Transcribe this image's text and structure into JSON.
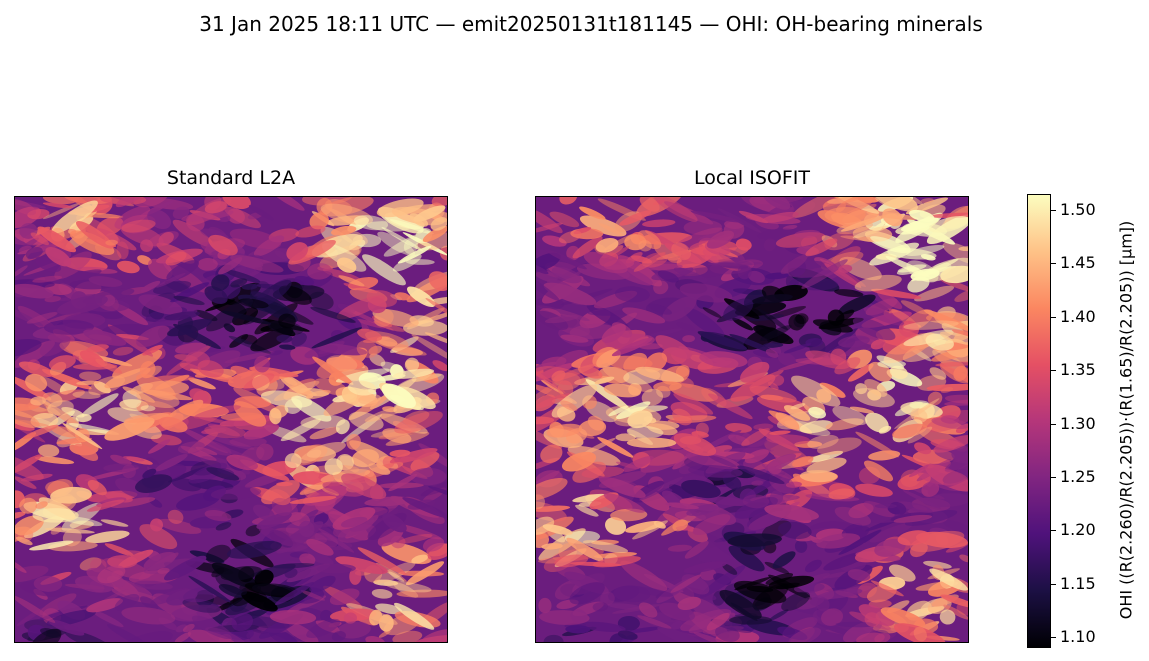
{
  "figure": {
    "title": "31 Jan 2025 18:11 UTC — emit20250131t181145 — OHI: OH-bearing minerals"
  },
  "panels": [
    {
      "title": "Standard L2A"
    },
    {
      "title": "Local ISOFIT"
    }
  ],
  "colorbar": {
    "label": "OHI  ((R(2.260)/R(2.205))·(R(1.65)/R(2.205))  [µm])",
    "colormap": "magma",
    "range": [
      1.09,
      1.515
    ],
    "ticks": [
      "1.10",
      "1.15",
      "1.20",
      "1.25",
      "1.30",
      "1.35",
      "1.40",
      "1.45",
      "1.50"
    ],
    "colors": [
      "#000004",
      "#1c1044",
      "#4f127b",
      "#812581",
      "#b5367a",
      "#e55064",
      "#fb8761",
      "#fec287",
      "#fcfdbf"
    ]
  }
}
